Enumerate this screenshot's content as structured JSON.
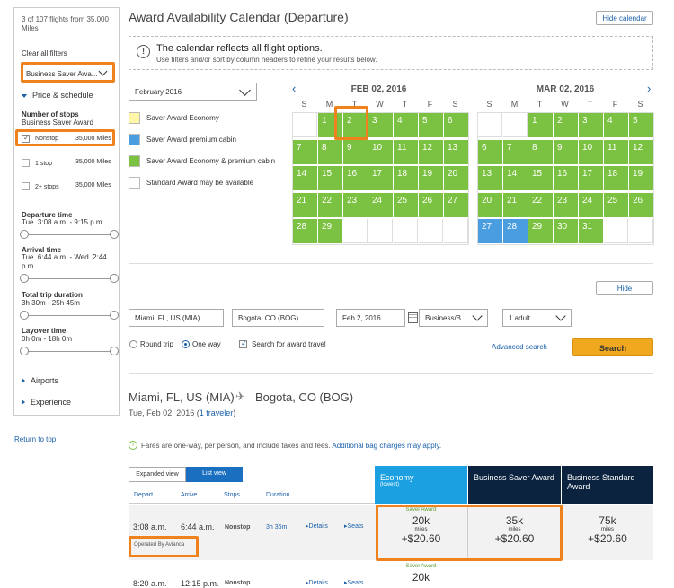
{
  "sidebar": {
    "summary": "3 of 107 flights from 35,000 Miles",
    "clear_filters": "Clear all filters",
    "fare_select": "Business Saver Awa...",
    "price_schedule": "Price & schedule",
    "stops_label": "Number of stops",
    "stops_sub": "Business Saver Award",
    "stops": [
      {
        "label": "Nonstop",
        "miles": "35,000 Miles",
        "checked": true
      },
      {
        "label": "1 stop",
        "miles": "35,000 Miles",
        "checked": false
      },
      {
        "label": "2+ stops",
        "miles": "35,000 Miles",
        "checked": false
      }
    ],
    "departure_label": "Departure time",
    "departure_value": "Tue. 3:08 a.m. - 9:15 p.m.",
    "arrival_label": "Arrival time",
    "arrival_value": "Tue. 6:44 a.m. - Wed. 2:44 p.m.",
    "duration_label": "Total trip duration",
    "duration_value": "3h 30m - 25h 45m",
    "layover_label": "Layover time",
    "layover_value": "0h 0m - 18h 0m",
    "airports": "Airports",
    "experience": "Experience",
    "return_top": "Return to top"
  },
  "header": {
    "title": "Award Availability Calendar (Departure)",
    "hide_calendar": "Hide calendar"
  },
  "notice": {
    "title": "The calendar reflects all flight options.",
    "sub": "Use filters and/or sort by column headers to refine your results below."
  },
  "month_select": "February 2016",
  "legend": [
    {
      "label": "Saver Award Economy",
      "color": "#fff6a8"
    },
    {
      "label": "Saver Award premium cabin",
      "color": "#4a9ee0"
    },
    {
      "label": "Saver Award Economy & premium cabin",
      "color": "#7cc242"
    },
    {
      "label": "Standard Award may be available",
      "color": "#ffffff"
    }
  ],
  "calendars": [
    {
      "title": "FEB 02, 2016",
      "dow": [
        "S",
        "M",
        "T",
        "W",
        "T",
        "F",
        "S"
      ],
      "rows": [
        [
          "",
          "1",
          "2",
          "3",
          "4",
          "5",
          "6"
        ],
        [
          "7",
          "8",
          "9",
          "10",
          "11",
          "12",
          "13"
        ],
        [
          "14",
          "15",
          "16",
          "17",
          "18",
          "19",
          "20"
        ],
        [
          "21",
          "22",
          "23",
          "24",
          "25",
          "26",
          "27"
        ],
        [
          "28",
          "29",
          "",
          "",
          "",
          "",
          ""
        ]
      ]
    },
    {
      "title": "MAR 02, 2016",
      "dow": [
        "S",
        "M",
        "T",
        "W",
        "T",
        "F",
        "S"
      ],
      "rows": [
        [
          "",
          "",
          "1",
          "2",
          "3",
          "4",
          "5"
        ],
        [
          "6",
          "7",
          "8",
          "9",
          "10",
          "11",
          "12"
        ],
        [
          "13",
          "14",
          "15",
          "16",
          "17",
          "18",
          "19"
        ],
        [
          "20",
          "21",
          "22",
          "23",
          "24",
          "25",
          "26"
        ],
        [
          "27",
          "28",
          "29",
          "30",
          "31",
          "",
          ""
        ]
      ]
    }
  ],
  "search": {
    "hide": "Hide",
    "from": "Miami, FL, US (MIA)",
    "to": "Bogota, CO (BOG)",
    "date": "Feb 2, 2016",
    "cabin": "Business/B...",
    "pax": "1 adult",
    "round_trip": "Round trip",
    "one_way": "One way",
    "award": "Search for award travel",
    "advanced": "Advanced search",
    "search_btn": "Search"
  },
  "route": {
    "from": "Miami, FL, US (MIA)",
    "to": "Bogota, CO (BOG)",
    "date": "Tue, Feb 02, 2016 (",
    "traveler": "1 traveler",
    "date_close": ")"
  },
  "fare_note": {
    "text": "Fares are one-way, per person, and include taxes and fees. ",
    "link": "Additional bag charges may apply."
  },
  "views": {
    "expanded": "Expanded view",
    "list": "List view"
  },
  "columns": {
    "depart": "Depart",
    "arrive": "Arrive",
    "stops": "Stops",
    "duration": "Duration"
  },
  "fare_headers": [
    {
      "title": "Economy",
      "sub": "(lowest)"
    },
    {
      "title": "Business Saver Award",
      "sub": ""
    },
    {
      "title": "Business Standard Award",
      "sub": ""
    }
  ],
  "flights": [
    {
      "depart": "3:08 a.m.",
      "arrive": "6:44 a.m.",
      "stops": "Nonstop",
      "duration": "3h 36m",
      "details": "Details",
      "seats": "Seats",
      "operated": "Operated By Avianca",
      "fares": [
        {
          "tag": "Saver Award",
          "miles": "20k",
          "unit": "miles",
          "tax": "+$20.60"
        },
        {
          "tag": "",
          "miles": "35k",
          "unit": "miles",
          "tax": "+$20.60"
        },
        {
          "tag": "",
          "miles": "75k",
          "unit": "miles",
          "tax": "+$20.60"
        }
      ]
    },
    {
      "depart": "8:20 a.m.",
      "arrive": "12:15 p.m.",
      "stops": "Nonstop",
      "duration": "",
      "details": "Details",
      "seats": "Seats",
      "operated": "",
      "fares": [
        {
          "tag": "Saver Award",
          "miles": "20k",
          "unit": "",
          "tax": ""
        }
      ]
    }
  ],
  "colors": {
    "green": "#7cc242",
    "blue": "#4a9ee0",
    "accent": "#f0821e",
    "navy": "#0c2340",
    "cyan": "#1ba0e1"
  }
}
